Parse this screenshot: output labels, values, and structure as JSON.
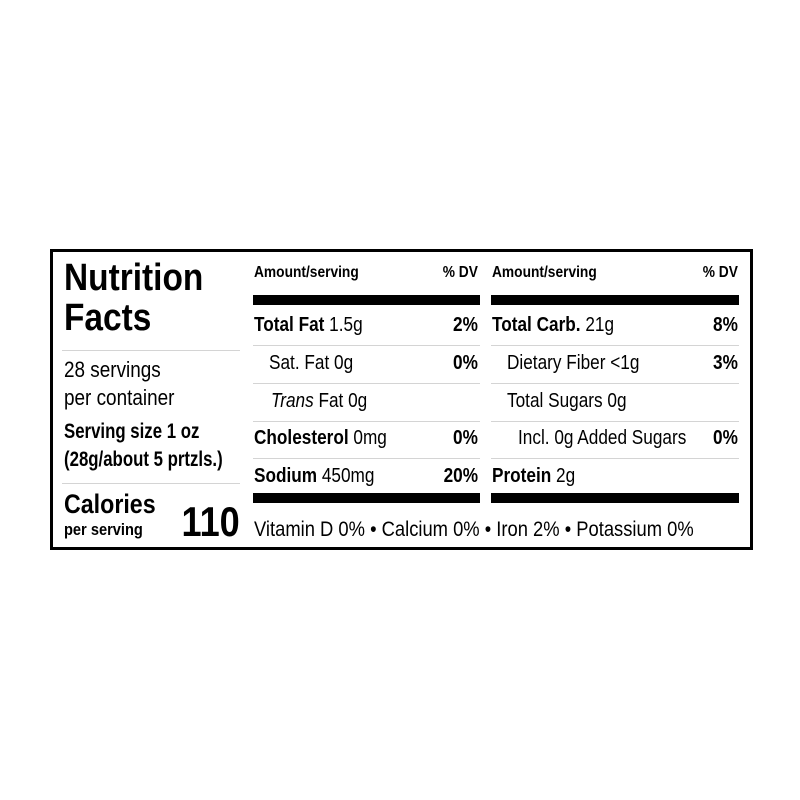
{
  "title_line1": "Nutrition",
  "title_line2": "Facts",
  "servings_line1": "28 servings",
  "servings_line2": "per container",
  "serving_size_line1": "Serving size 1 oz",
  "serving_size_line2": "(28g/about 5 prtzls.)",
  "calories_label": "Calories",
  "calories_sub": "per serving",
  "calories_value": "110",
  "header": {
    "amount": "Amount/serving",
    "dv": "% DV"
  },
  "left_rows": [
    {
      "name": "Total Fat",
      "amount": "1.5g",
      "dv": "2%"
    },
    {
      "name": "Sat. Fat 0g",
      "dv": "0%"
    },
    {
      "name_italic": "Trans",
      "name": "Fat 0g"
    },
    {
      "name": "Cholesterol",
      "amount": "0mg",
      "dv": "0%"
    },
    {
      "name": "Sodium",
      "amount": "450mg",
      "dv": "20%"
    }
  ],
  "right_rows": [
    {
      "name": "Total Carb.",
      "amount": "21g",
      "dv": "8%"
    },
    {
      "name": "Dietary Fiber <1g",
      "dv": "3%"
    },
    {
      "name": "Total Sugars 0g"
    },
    {
      "name": "Incl. 0g Added Sugars",
      "dv": "0%"
    },
    {
      "name": "Protein",
      "amount": "2g"
    }
  ],
  "vitamins": "Vitamin D 0% • Calcium 0% • Iron 2% • Potassium 0%"
}
